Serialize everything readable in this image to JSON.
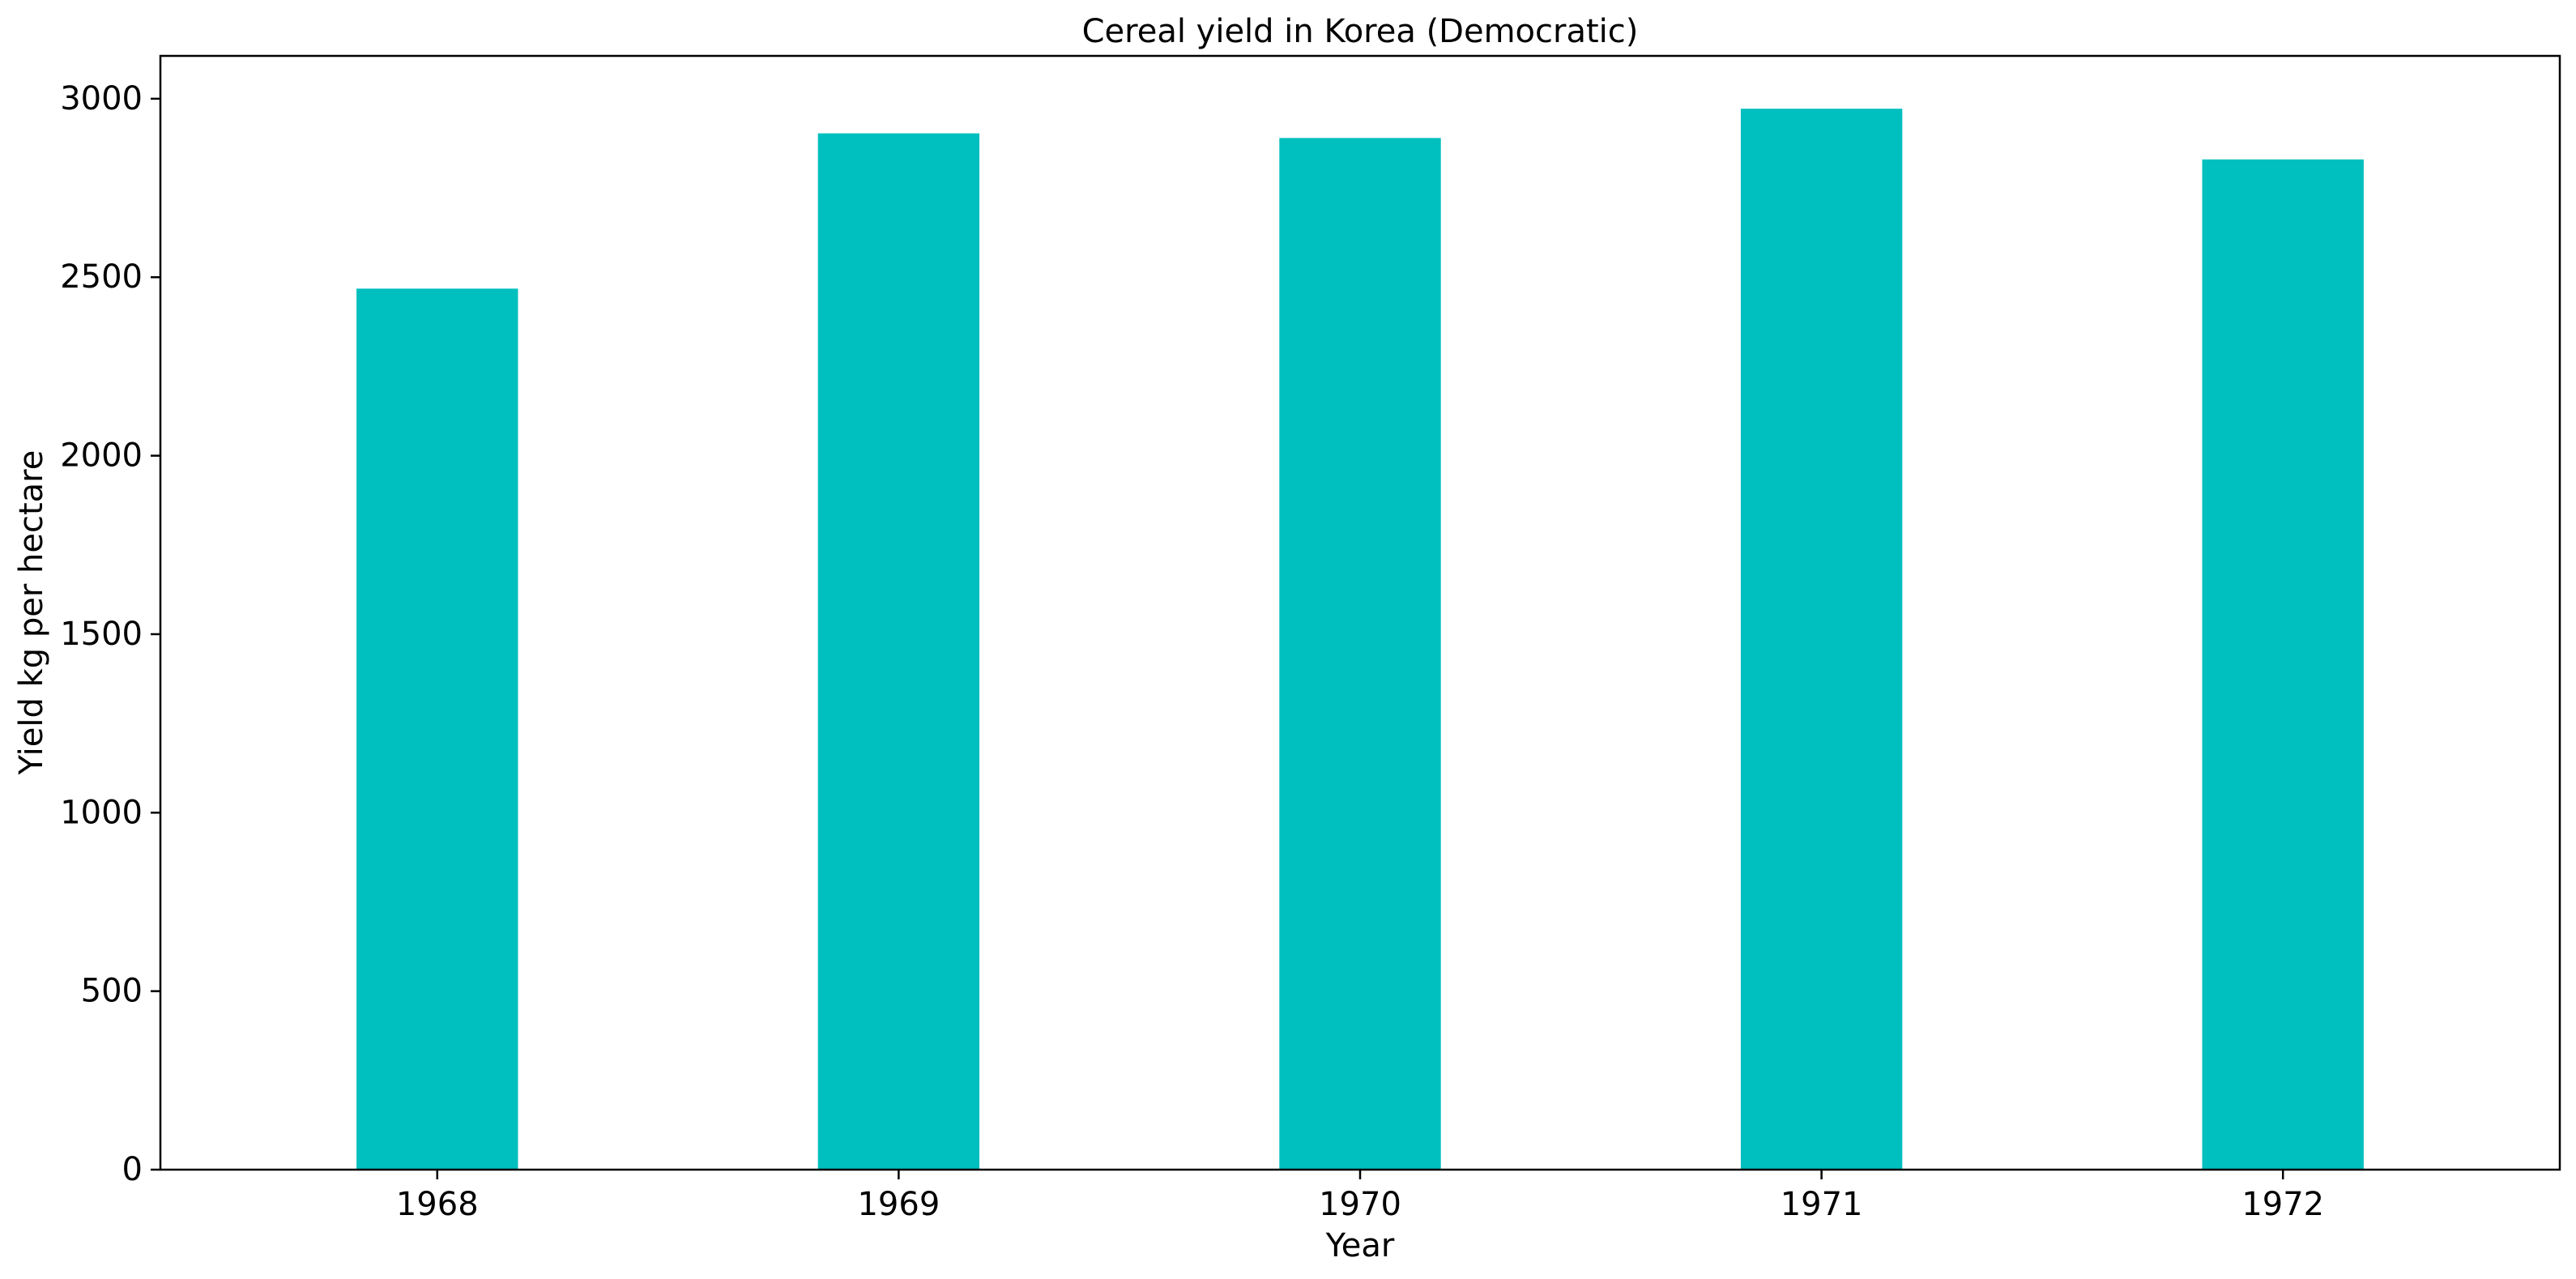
{
  "chart_data": {
    "type": "bar",
    "title": "Cereal yield in Korea (Democratic)",
    "xlabel": "Year",
    "ylabel": "Yield kg per hectare",
    "categories": [
      "1968",
      "1969",
      "1970",
      "1971",
      "1972"
    ],
    "values": [
      2468,
      2903,
      2890,
      2972,
      2830
    ],
    "ylim": [
      0,
      3120
    ],
    "yticks": [
      0,
      500,
      1000,
      1500,
      2000,
      2500,
      3000
    ],
    "bar_color": "#00bfbf",
    "grid": false,
    "legend": "none"
  }
}
